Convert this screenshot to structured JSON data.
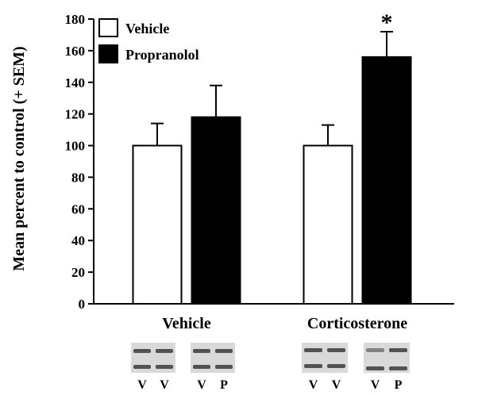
{
  "chart_data": {
    "type": "bar",
    "title": "",
    "xlabel": "",
    "ylabel": "Mean percent to control (+ SEM)",
    "ylim": [
      0,
      180
    ],
    "yticks": [
      0,
      20,
      40,
      60,
      80,
      100,
      120,
      140,
      160,
      180
    ],
    "grid": false,
    "legend_position": "top-left",
    "categories": [
      "Vehicle",
      "Corticosterone"
    ],
    "series": [
      {
        "name": "Vehicle",
        "values": [
          100,
          100
        ],
        "errors": [
          14,
          13
        ],
        "fill": "#ffffff"
      },
      {
        "name": "Propranolol",
        "values": [
          118,
          156
        ],
        "errors": [
          20,
          16
        ],
        "fill": "#000000"
      }
    ],
    "annotations": [
      {
        "text": "*",
        "category": 1,
        "series": 1
      }
    ],
    "blot_lanes": [
      [
        "V",
        "V",
        "V",
        "P"
      ],
      [
        "V",
        "V",
        "V",
        "P"
      ]
    ]
  }
}
